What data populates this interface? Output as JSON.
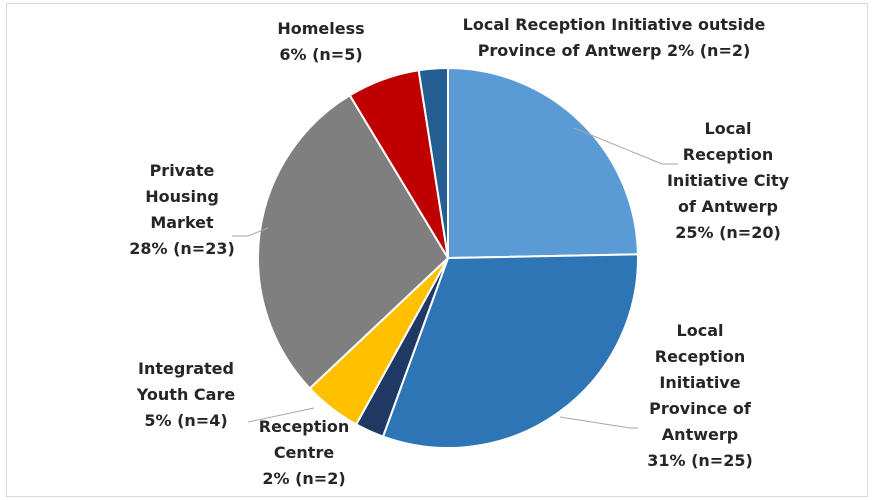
{
  "chart_data": {
    "type": "pie",
    "title": "",
    "start_angle_deg": 0,
    "slices": [
      {
        "name": "Local Reception Initiative City of Antwerp",
        "value": 20,
        "percent_label": "25% (n=20)",
        "color": "#5b9bd5",
        "label_lines": [
          "Local",
          "Reception",
          "Initiative City",
          "of Antwerp",
          "25% (n=20)"
        ]
      },
      {
        "name": "Local Reception Initiative Province of Antwerp",
        "value": 25,
        "percent_label": "31% (n=25)",
        "color": "#2e75b6",
        "label_lines": [
          "Local",
          "Reception",
          "Initiative",
          "Province of",
          "Antwerp",
          "31% (n=25)"
        ]
      },
      {
        "name": "Reception Centre",
        "value": 2,
        "percent_label": "2% (n=2)",
        "color": "#1f3864",
        "label_lines": [
          "Reception",
          "Centre",
          "2% (n=2)"
        ]
      },
      {
        "name": "Integrated Youth Care",
        "value": 4,
        "percent_label": "5% (n=4)",
        "color": "#ffc000",
        "label_lines": [
          "Integrated",
          "Youth Care",
          "5% (n=4)"
        ]
      },
      {
        "name": "Private Housing Market",
        "value": 23,
        "percent_label": "28% (n=23)",
        "color": "#7f7f7f",
        "label_lines": [
          "Private",
          "Housing",
          "Market",
          "28% (n=23)"
        ]
      },
      {
        "name": "Homeless",
        "value": 5,
        "percent_label": "6% (n=5)",
        "color": "#c00000",
        "label_lines": [
          "Homeless",
          "6% (n=5)"
        ]
      },
      {
        "name": "Local Reception Initiative outside Province of Antwerp",
        "value": 2,
        "percent_label": "2% (n=2)",
        "color": "#255e91",
        "label_lines": [
          "Local Reception Initiative outside",
          "Province of Antwerp 2% (n=2)"
        ]
      }
    ]
  }
}
